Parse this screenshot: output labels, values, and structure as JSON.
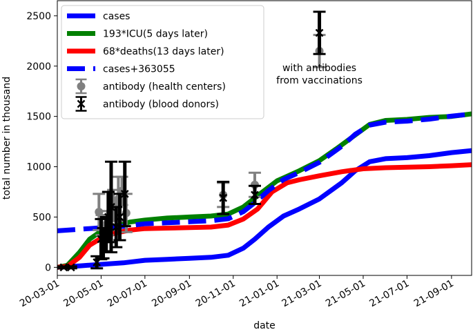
{
  "chart_data": {
    "type": "line",
    "xlabel": "date",
    "ylabel": "total number in thousand",
    "ylim": [
      -80,
      2650
    ],
    "xlim": [
      "2020-03-01",
      "2021-09-29"
    ],
    "x_ticks": [
      "20-03-01",
      "20-05-01",
      "20-07-01",
      "20-09-01",
      "20-11-01",
      "21-01-01",
      "21-03-01",
      "21-05-01",
      "21-07-01",
      "21-09-01"
    ],
    "x_tick_dates": [
      "2020-03-01",
      "2020-05-01",
      "2020-07-01",
      "2020-09-01",
      "2020-11-01",
      "2021-01-01",
      "2021-03-01",
      "2021-05-01",
      "2021-07-01",
      "2021-09-01"
    ],
    "y_ticks": [
      0,
      500,
      1000,
      1500,
      2000,
      2500
    ],
    "legend_position": "top-left",
    "series": [
      {
        "name": "cases",
        "color": "#0000ff",
        "style": "solid",
        "points": [
          [
            "2020-03-01",
            0
          ],
          [
            "2020-04-01",
            15
          ],
          [
            "2020-05-01",
            30
          ],
          [
            "2020-06-01",
            45
          ],
          [
            "2020-07-01",
            70
          ],
          [
            "2020-08-01",
            80
          ],
          [
            "2020-09-01",
            90
          ],
          [
            "2020-10-01",
            100
          ],
          [
            "2020-10-25",
            120
          ],
          [
            "2020-11-15",
            190
          ],
          [
            "2020-12-01",
            280
          ],
          [
            "2020-12-20",
            400
          ],
          [
            "2021-01-10",
            510
          ],
          [
            "2021-02-01",
            580
          ],
          [
            "2021-03-01",
            680
          ],
          [
            "2021-04-01",
            840
          ],
          [
            "2021-04-20",
            960
          ],
          [
            "2021-05-10",
            1050
          ],
          [
            "2021-06-01",
            1080
          ],
          [
            "2021-07-01",
            1090
          ],
          [
            "2021-08-01",
            1110
          ],
          [
            "2021-09-01",
            1140
          ],
          [
            "2021-09-29",
            1160
          ]
        ]
      },
      {
        "name": "193*ICU(5 days later)",
        "color": "#008000",
        "style": "solid",
        "points": [
          [
            "2020-03-01",
            0
          ],
          [
            "2020-03-15",
            20
          ],
          [
            "2020-04-01",
            150
          ],
          [
            "2020-04-15",
            280
          ],
          [
            "2020-05-01",
            360
          ],
          [
            "2020-05-20",
            410
          ],
          [
            "2020-06-10",
            450
          ],
          [
            "2020-07-01",
            470
          ],
          [
            "2020-08-01",
            490
          ],
          [
            "2020-09-01",
            500
          ],
          [
            "2020-10-01",
            510
          ],
          [
            "2020-10-25",
            530
          ],
          [
            "2020-11-15",
            600
          ],
          [
            "2020-12-10",
            740
          ],
          [
            "2021-01-01",
            860
          ],
          [
            "2021-02-01",
            960
          ],
          [
            "2021-03-01",
            1060
          ],
          [
            "2021-03-25",
            1180
          ],
          [
            "2021-04-15",
            1290
          ],
          [
            "2021-05-10",
            1420
          ],
          [
            "2021-06-01",
            1460
          ],
          [
            "2021-07-01",
            1470
          ],
          [
            "2021-08-01",
            1490
          ],
          [
            "2021-09-01",
            1500
          ],
          [
            "2021-09-29",
            1525
          ]
        ]
      },
      {
        "name": "68*deaths(13 days later)",
        "color": "#ff0000",
        "style": "solid",
        "points": [
          [
            "2020-03-01",
            0
          ],
          [
            "2020-03-15",
            10
          ],
          [
            "2020-04-01",
            100
          ],
          [
            "2020-04-15",
            220
          ],
          [
            "2020-05-01",
            290
          ],
          [
            "2020-05-20",
            340
          ],
          [
            "2020-06-10",
            370
          ],
          [
            "2020-07-01",
            385
          ],
          [
            "2020-08-01",
            390
          ],
          [
            "2020-09-01",
            395
          ],
          [
            "2020-10-01",
            400
          ],
          [
            "2020-10-25",
            420
          ],
          [
            "2020-11-15",
            480
          ],
          [
            "2020-12-05",
            580
          ],
          [
            "2020-12-25",
            750
          ],
          [
            "2021-01-15",
            840
          ],
          [
            "2021-02-01",
            870
          ],
          [
            "2021-03-01",
            910
          ],
          [
            "2021-04-01",
            950
          ],
          [
            "2021-05-01",
            980
          ],
          [
            "2021-06-01",
            990
          ],
          [
            "2021-07-01",
            995
          ],
          [
            "2021-08-01",
            1000
          ],
          [
            "2021-09-01",
            1010
          ],
          [
            "2021-09-29",
            1020
          ]
        ]
      },
      {
        "name": "cases+363055",
        "color": "#0000ff",
        "style": "dashed",
        "points": [
          [
            "2020-03-01",
            363
          ],
          [
            "2020-04-01",
            378
          ],
          [
            "2020-05-01",
            393
          ],
          [
            "2020-06-01",
            408
          ],
          [
            "2020-07-01",
            433
          ],
          [
            "2020-08-01",
            443
          ],
          [
            "2020-09-01",
            453
          ],
          [
            "2020-10-01",
            463
          ],
          [
            "2020-10-25",
            483
          ],
          [
            "2020-11-15",
            553
          ],
          [
            "2020-12-01",
            643
          ],
          [
            "2020-12-20",
            763
          ],
          [
            "2021-01-10",
            873
          ],
          [
            "2021-02-01",
            943
          ],
          [
            "2021-03-01",
            1043
          ],
          [
            "2021-04-01",
            1203
          ],
          [
            "2021-04-20",
            1323
          ],
          [
            "2021-05-10",
            1413
          ],
          [
            "2021-06-01",
            1443
          ],
          [
            "2021-07-01",
            1453
          ],
          [
            "2021-08-01",
            1473
          ],
          [
            "2021-09-01",
            1503
          ],
          [
            "2021-09-29",
            1523
          ]
        ]
      }
    ],
    "errorbar_series": [
      {
        "name": "antibody (health centers)",
        "color": "#808080",
        "marker": "circle",
        "points": [
          {
            "x": "2020-04-28",
            "y": 550,
            "yerr": 180
          },
          {
            "x": "2020-05-02",
            "y": 420,
            "yerr": 100
          },
          {
            "x": "2020-05-10",
            "y": 440,
            "yerr": 120
          },
          {
            "x": "2020-05-18",
            "y": 620,
            "yerr": 150
          },
          {
            "x": "2020-05-25",
            "y": 680,
            "yerr": 220
          },
          {
            "x": "2020-05-30",
            "y": 760,
            "yerr": 140
          },
          {
            "x": "2020-06-05",
            "y": 540,
            "yerr": 190
          },
          {
            "x": "2020-10-18",
            "y": 720,
            "yerr": 120
          },
          {
            "x": "2020-12-01",
            "y": 820,
            "yerr": 120
          },
          {
            "x": "2021-03-01",
            "y": 2150,
            "yerr": 160
          }
        ]
      },
      {
        "name": "antibody (blood donors)",
        "color": "#000000",
        "marker": "x",
        "points": [
          {
            "x": "2020-03-10",
            "y": 0,
            "yerr": 10
          },
          {
            "x": "2020-03-20",
            "y": 0,
            "yerr": 10
          },
          {
            "x": "2020-04-25",
            "y": 50,
            "yerr": 60
          },
          {
            "x": "2020-05-01",
            "y": 280,
            "yerr": 200
          },
          {
            "x": "2020-05-04",
            "y": 240,
            "yerr": 150
          },
          {
            "x": "2020-05-08",
            "y": 330,
            "yerr": 170
          },
          {
            "x": "2020-05-11",
            "y": 500,
            "yerr": 250
          },
          {
            "x": "2020-05-15",
            "y": 600,
            "yerr": 450
          },
          {
            "x": "2020-05-22",
            "y": 400,
            "yerr": 200
          },
          {
            "x": "2020-05-27",
            "y": 500,
            "yerr": 230
          },
          {
            "x": "2020-06-03",
            "y": 730,
            "yerr": 320
          },
          {
            "x": "2020-10-18",
            "y": 690,
            "yerr": 160
          },
          {
            "x": "2020-12-01",
            "y": 720,
            "yerr": 90
          },
          {
            "x": "2021-03-01",
            "y": 2330,
            "yerr": 210
          }
        ]
      }
    ],
    "annotation": {
      "lines": [
        "with antibodies",
        "from vaccinations"
      ],
      "x": "2021-03-01",
      "y": 1950
    }
  }
}
